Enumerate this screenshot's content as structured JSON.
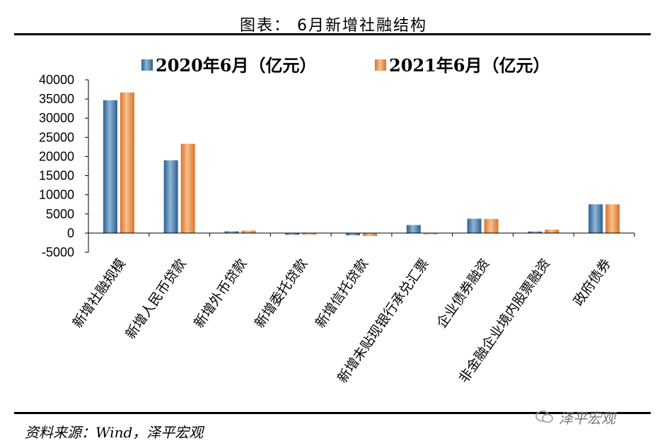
{
  "title": "图表： 6月新增社融结构",
  "source": "资料来源：Wind，泽平宏观",
  "watermark": "泽平宏观",
  "colors": {
    "series1": "#4a7fb0",
    "series2": "#f0934c"
  },
  "chart_data": {
    "type": "bar",
    "categories": [
      "新增社融规模",
      "新增人民币贷款",
      "新增外币贷款",
      "新增委托贷款",
      "新增信托贷款",
      "新增未贴现银行承兑汇票",
      "企业债券融资",
      "非金融企业境内股票融资",
      "政府债券"
    ],
    "series": [
      {
        "name": "2020年6月（亿元）",
        "values": [
          34681,
          18999,
          474,
          -452,
          -584,
          2113,
          3757,
          423,
          7519
        ]
      },
      {
        "name": "2021年6月（亿元）",
        "values": [
          36700,
          23300,
          650,
          -400,
          -750,
          -300,
          3700,
          900,
          7500
        ]
      }
    ],
    "ylim": [
      -5000,
      40000
    ],
    "yticks": [
      -5000,
      0,
      5000,
      10000,
      15000,
      20000,
      25000,
      30000,
      35000,
      40000
    ],
    "legend": "top"
  }
}
